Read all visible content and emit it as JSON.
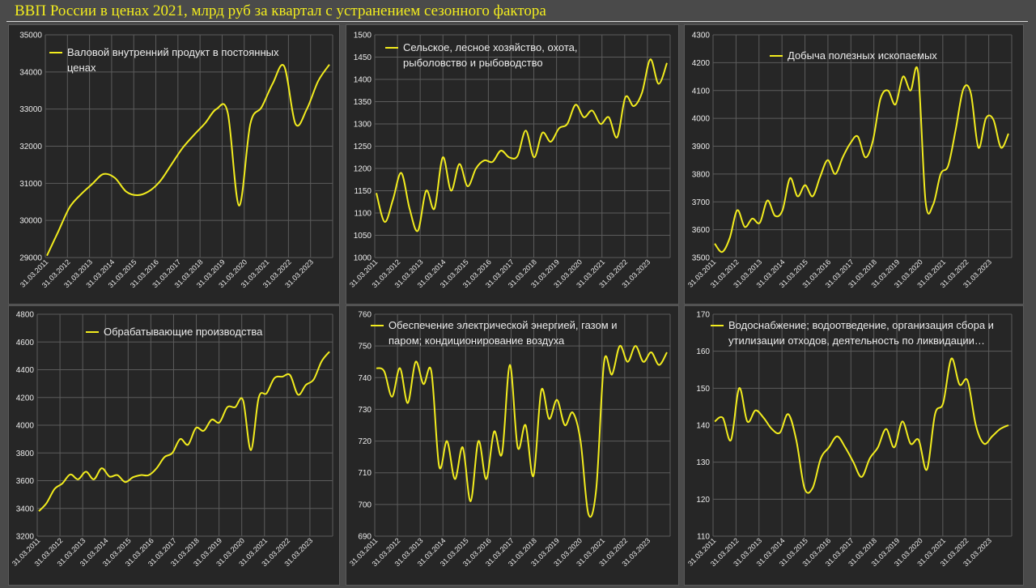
{
  "page_title": "ВВП России в ценах 2021, млрд руб за квартал с устранением сезонного фактора",
  "x_tick_labels": [
    "31.03.2011",
    "31.03.2012",
    "31.03.2013",
    "31.03.2014",
    "31.03.2015",
    "31.03.2016",
    "31.03.2017",
    "31.03.2018",
    "31.03.2019",
    "31.03.2020",
    "31.03.2021",
    "31.03.2022",
    "31.03.2023"
  ],
  "colors": {
    "line": "#f2ec1e",
    "panel": "#262626",
    "grid": "#5c5c5c",
    "text": "#ececec"
  },
  "chart_data": [
    {
      "type": "line",
      "legend": "Валовой внутренний продукт в постоянных ценах",
      "ylim": [
        29000,
        35000
      ],
      "yticks": [
        "29000",
        "30000",
        "31000",
        "32000",
        "33000",
        "34000",
        "35000"
      ],
      "values": [
        29050,
        29700,
        30350,
        30700,
        30980,
        31250,
        31150,
        30780,
        30680,
        30780,
        31050,
        31500,
        31950,
        32300,
        32620,
        33000,
        32900,
        30400,
        32600,
        33050,
        33700,
        34150,
        32600,
        33000,
        33750,
        34200
      ]
    },
    {
      "type": "line",
      "legend": "Сельское, лесное хозяйство, охота, рыболовство и рыбоводство",
      "ylim": [
        1000,
        1500
      ],
      "yticks": [
        "1000",
        "1050",
        "1100",
        "1150",
        "1200",
        "1250",
        "1300",
        "1350",
        "1400",
        "1450",
        "1500"
      ],
      "values": [
        1145,
        1080,
        1130,
        1190,
        1110,
        1060,
        1150,
        1110,
        1225,
        1150,
        1210,
        1160,
        1200,
        1218,
        1215,
        1240,
        1225,
        1228,
        1285,
        1225,
        1280,
        1260,
        1290,
        1300,
        1343,
        1315,
        1330,
        1300,
        1315,
        1270,
        1360,
        1340,
        1370,
        1445,
        1390,
        1437
      ]
    },
    {
      "type": "line",
      "legend": "Добыча полезных ископаемых",
      "ylim": [
        3500,
        4300
      ],
      "yticks": [
        "3500",
        "3600",
        "3700",
        "3800",
        "3900",
        "4000",
        "4100",
        "4200",
        "4300"
      ],
      "values": [
        3550,
        3520,
        3570,
        3670,
        3610,
        3640,
        3625,
        3705,
        3650,
        3670,
        3785,
        3720,
        3760,
        3720,
        3790,
        3850,
        3800,
        3860,
        3910,
        3935,
        3860,
        3920,
        4070,
        4100,
        4050,
        4150,
        4100,
        4165,
        3700,
        3690,
        3800,
        3830,
        3960,
        4105,
        4090,
        3895,
        4000,
        3995,
        3895,
        3945
      ]
    },
    {
      "type": "line",
      "legend": "Обрабатывающие производства",
      "ylim": [
        3200,
        4800
      ],
      "yticks": [
        "3200",
        "3400",
        "3600",
        "3800",
        "4000",
        "4200",
        "4400",
        "4600",
        "4800"
      ],
      "values": [
        3380,
        3440,
        3540,
        3580,
        3645,
        3610,
        3665,
        3610,
        3690,
        3630,
        3640,
        3590,
        3625,
        3640,
        3640,
        3690,
        3770,
        3800,
        3900,
        3860,
        3980,
        3960,
        4040,
        4020,
        4130,
        4130,
        4180,
        3820,
        4200,
        4230,
        4340,
        4350,
        4360,
        4220,
        4290,
        4330,
        4460,
        4530
      ]
    },
    {
      "type": "line",
      "legend": "Обеспечение электрической энергией, газом и паром; кондиционирование воздуха",
      "ylim": [
        690,
        760
      ],
      "yticks": [
        "690",
        "700",
        "710",
        "720",
        "730",
        "740",
        "750",
        "760"
      ],
      "values": [
        743,
        742,
        734,
        743,
        732,
        745,
        738,
        742,
        712,
        720,
        708,
        718,
        701,
        720,
        708,
        723,
        716,
        744,
        718,
        725,
        709,
        736,
        727,
        733,
        725,
        729,
        720,
        697,
        705,
        745,
        741,
        750,
        745,
        750,
        745,
        748,
        744,
        748
      ]
    },
    {
      "type": "line",
      "legend": "Водоснабжение; водоотведение, организация сбора и утилизации отходов, деятельность по ликвидации…",
      "ylim": [
        110,
        170
      ],
      "yticks": [
        "110",
        "120",
        "130",
        "140",
        "150",
        "160",
        "170"
      ],
      "values": [
        141,
        142,
        136,
        150,
        141,
        144,
        142,
        139,
        138,
        143,
        136,
        123,
        123,
        131,
        134,
        137,
        134,
        130,
        126,
        131,
        134,
        139,
        134,
        141,
        135,
        136,
        128,
        143,
        146,
        158,
        151,
        152,
        140,
        135,
        137,
        139,
        140
      ]
    }
  ]
}
